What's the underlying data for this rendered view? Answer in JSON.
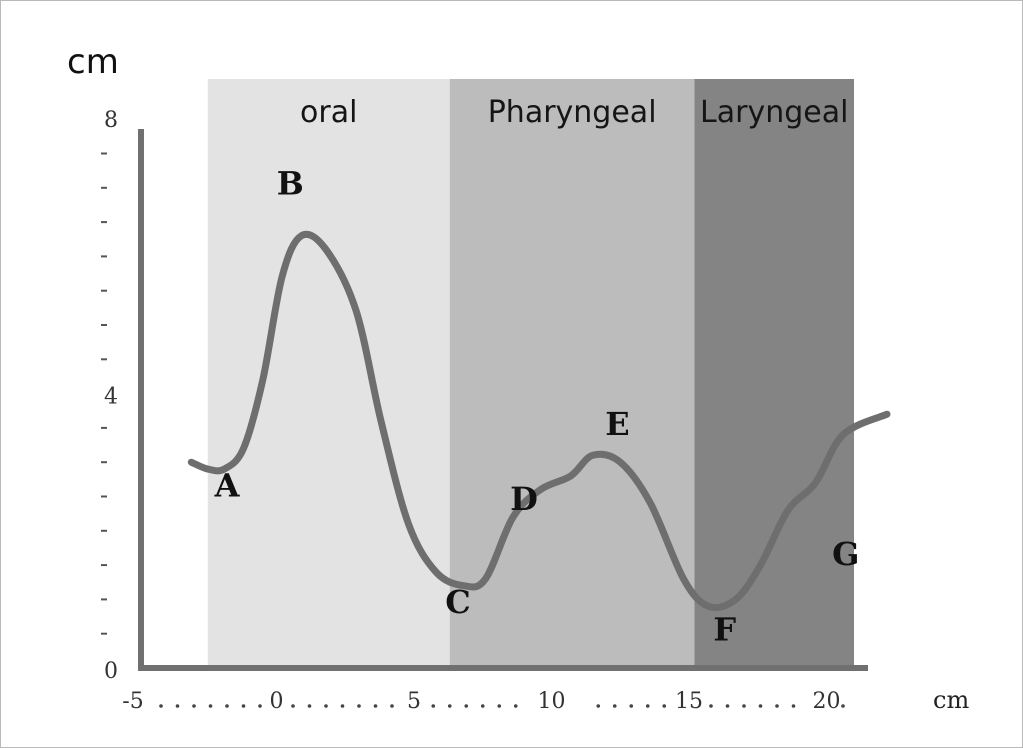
{
  "chart_data": {
    "type": "line",
    "title": "",
    "ylabel": "cm",
    "xlabel": "cm",
    "xlim": [
      -5,
      21
    ],
    "ylim": [
      0,
      8
    ],
    "x_ticks": [
      -5,
      0,
      5,
      10,
      15,
      20
    ],
    "x_tick_labels": [
      "-5",
      "0",
      "5",
      "10",
      "15",
      "20"
    ],
    "y_tick_labels": [
      "0",
      "4",
      "8"
    ],
    "y_tick_values": [
      0,
      4,
      8
    ],
    "y_minor_ticks": [
      0.5,
      1,
      1.5,
      2,
      2.5,
      3,
      3.5,
      4.5,
      5,
      5.5,
      6,
      6.5,
      7,
      7.5
    ],
    "x_dots": [
      -4.2,
      -3.6,
      -3.0,
      -2.4,
      -1.8,
      -1.2,
      -0.6,
      0.6,
      1.2,
      1.8,
      2.4,
      3.0,
      3.6,
      4.2,
      5.7,
      6.3,
      6.9,
      7.5,
      8.1,
      8.7,
      11.7,
      12.3,
      12.9,
      13.5,
      14.1,
      15.8,
      16.4,
      17.0,
      17.6,
      18.2,
      18.8,
      20.6
    ],
    "regions": [
      {
        "label": "oral",
        "x0": -2.5,
        "x1": 6.3,
        "color": "#e3e3e3"
      },
      {
        "label": "Pharyngeal",
        "x0": 6.3,
        "x1": 15.2,
        "color": "#bcbcbc"
      },
      {
        "label": "Laryngeal",
        "x0": 15.2,
        "x1": 21,
        "color": "#848484"
      }
    ],
    "series": [
      {
        "color": "#6e6e6e",
        "points": [
          [
            -3.1,
            3.0
          ],
          [
            -2.5,
            2.9
          ],
          [
            -1.9,
            2.9
          ],
          [
            -1.2,
            3.2
          ],
          [
            -0.5,
            4.2
          ],
          [
            0.2,
            5.7
          ],
          [
            0.9,
            6.3
          ],
          [
            1.8,
            6.1
          ],
          [
            2.9,
            5.2
          ],
          [
            3.8,
            3.6
          ],
          [
            4.8,
            2.1
          ],
          [
            5.8,
            1.4
          ],
          [
            6.8,
            1.2
          ],
          [
            7.6,
            1.3
          ],
          [
            8.6,
            2.2
          ],
          [
            9.6,
            2.6
          ],
          [
            10.7,
            2.8
          ],
          [
            11.5,
            3.1
          ],
          [
            12.5,
            3.0
          ],
          [
            13.6,
            2.4
          ],
          [
            14.8,
            1.3
          ],
          [
            15.7,
            0.9
          ],
          [
            16.7,
            1.0
          ],
          [
            17.6,
            1.5
          ],
          [
            18.6,
            2.3
          ],
          [
            19.6,
            2.7
          ],
          [
            20.6,
            3.4
          ],
          [
            22.2,
            3.7
          ]
        ]
      }
    ],
    "annotations": [
      {
        "text": "A",
        "x": -1.8,
        "y": 2.5
      },
      {
        "text": "B",
        "x": 0.5,
        "y": 6.9
      },
      {
        "text": "C",
        "x": 6.6,
        "y": 0.8
      },
      {
        "text": "D",
        "x": 9.0,
        "y": 2.3
      },
      {
        "text": "E",
        "x": 12.4,
        "y": 3.4
      },
      {
        "text": "F",
        "x": 16.3,
        "y": 0.4
      },
      {
        "text": "G",
        "x": 20.7,
        "y": 1.5
      }
    ]
  }
}
